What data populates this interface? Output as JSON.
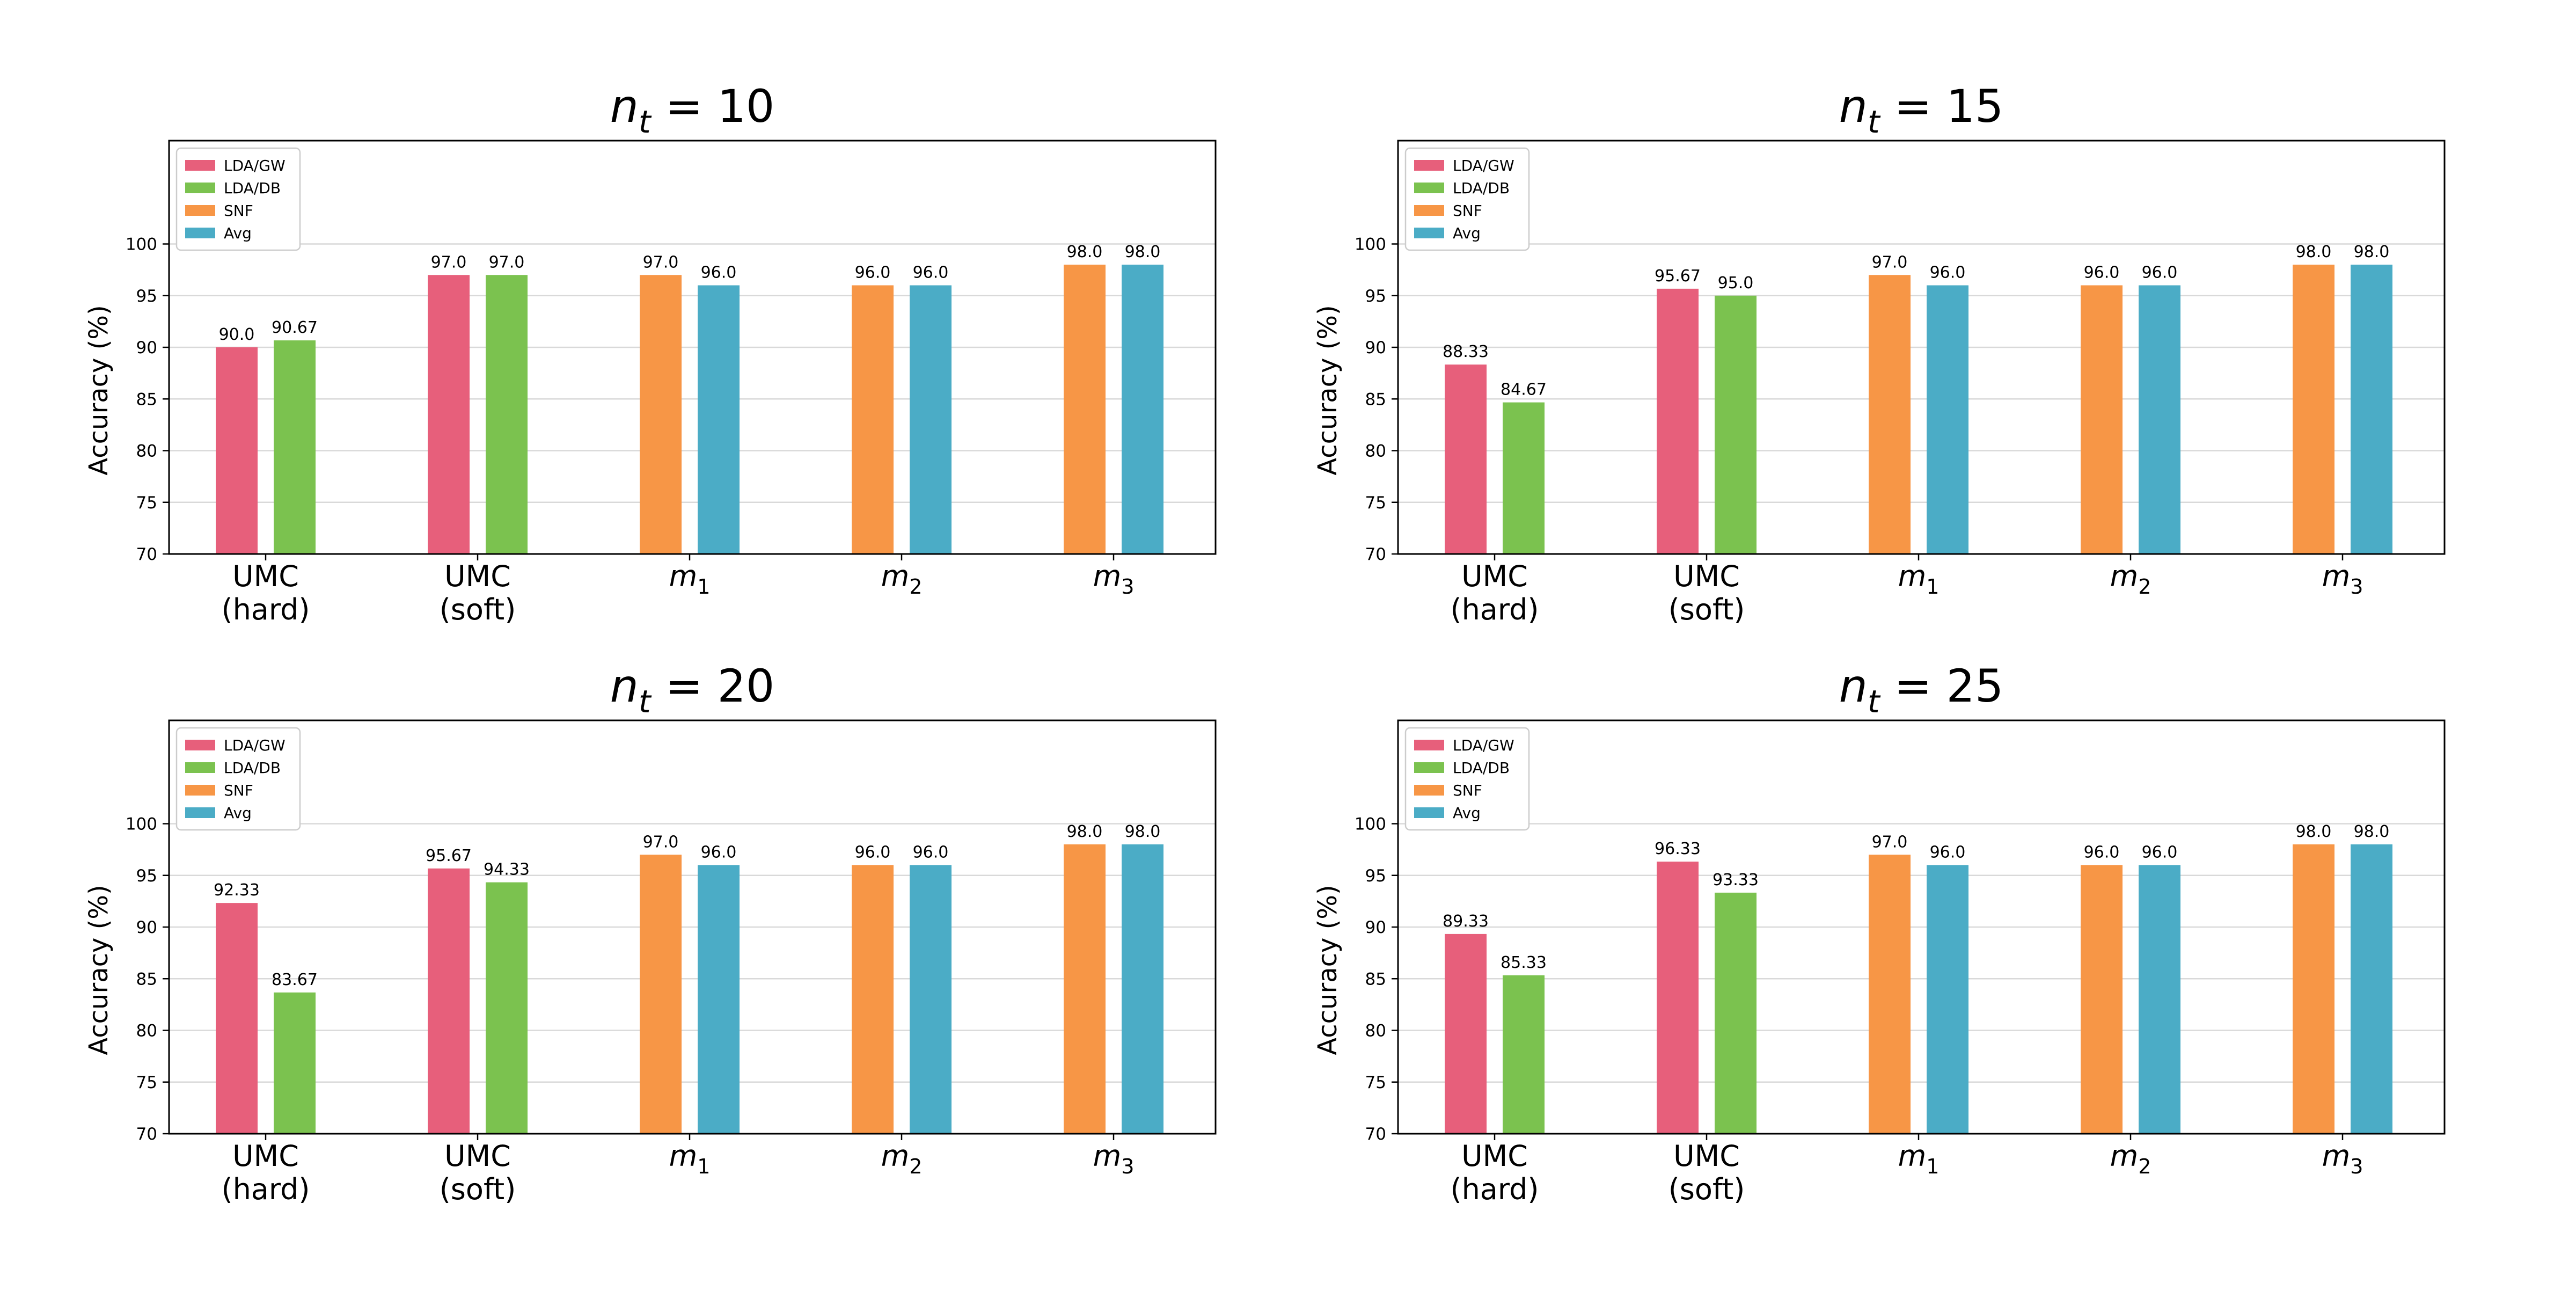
{
  "chart_data": [
    {
      "type": "bar",
      "title_main": "n",
      "title_sub": "t",
      "title_rest": " = 10",
      "ylabel": "Accuracy (%)",
      "ylim": [
        70,
        110
      ],
      "yticks": [
        70,
        75,
        80,
        85,
        90,
        95,
        100
      ],
      "categories": [
        {
          "lines": [
            "UMC",
            "(hard)"
          ]
        },
        {
          "lines": [
            "UMC",
            "(soft)"
          ]
        },
        {
          "math": "m",
          "sub": "1"
        },
        {
          "math": "m",
          "sub": "2"
        },
        {
          "math": "m",
          "sub": "3"
        }
      ],
      "series": [
        {
          "name": "LDA/GW",
          "color": "#e75f7b",
          "values": [
            90.0,
            97.0,
            null,
            null,
            null
          ],
          "labels": [
            "90.0",
            "97.0",
            null,
            null,
            null
          ]
        },
        {
          "name": "LDA/DB",
          "color": "#7bc24f",
          "values": [
            90.67,
            97.0,
            null,
            null,
            null
          ],
          "labels": [
            "90.67",
            "97.0",
            null,
            null,
            null
          ]
        },
        {
          "name": "SNF",
          "color": "#f79646",
          "values": [
            null,
            null,
            97.0,
            96.0,
            98.0
          ],
          "labels": [
            null,
            null,
            "97.0",
            "96.0",
            "98.0"
          ]
        },
        {
          "name": "Avg",
          "color": "#4bacc6",
          "values": [
            null,
            null,
            96.0,
            96.0,
            98.0
          ],
          "labels": [
            null,
            null,
            "96.0",
            "96.0",
            "98.0"
          ]
        }
      ],
      "legend": "top-left",
      "grid": "y"
    },
    {
      "type": "bar",
      "title_main": "n",
      "title_sub": "t",
      "title_rest": " = 15",
      "ylabel": "Accuracy (%)",
      "ylim": [
        70,
        110
      ],
      "yticks": [
        70,
        75,
        80,
        85,
        90,
        95,
        100
      ],
      "categories": [
        {
          "lines": [
            "UMC",
            "(hard)"
          ]
        },
        {
          "lines": [
            "UMC",
            "(soft)"
          ]
        },
        {
          "math": "m",
          "sub": "1"
        },
        {
          "math": "m",
          "sub": "2"
        },
        {
          "math": "m",
          "sub": "3"
        }
      ],
      "series": [
        {
          "name": "LDA/GW",
          "color": "#e75f7b",
          "values": [
            88.33,
            95.67,
            null,
            null,
            null
          ],
          "labels": [
            "88.33",
            "95.67",
            null,
            null,
            null
          ]
        },
        {
          "name": "LDA/DB",
          "color": "#7bc24f",
          "values": [
            84.67,
            95.0,
            null,
            null,
            null
          ],
          "labels": [
            "84.67",
            "95.0",
            null,
            null,
            null
          ]
        },
        {
          "name": "SNF",
          "color": "#f79646",
          "values": [
            null,
            null,
            97.0,
            96.0,
            98.0
          ],
          "labels": [
            null,
            null,
            "97.0",
            "96.0",
            "98.0"
          ]
        },
        {
          "name": "Avg",
          "color": "#4bacc6",
          "values": [
            null,
            null,
            96.0,
            96.0,
            98.0
          ],
          "labels": [
            null,
            null,
            "96.0",
            "96.0",
            "98.0"
          ]
        }
      ],
      "legend": "top-left",
      "grid": "y"
    },
    {
      "type": "bar",
      "title_main": "n",
      "title_sub": "t",
      "title_rest": " = 20",
      "ylabel": "Accuracy (%)",
      "ylim": [
        70,
        110
      ],
      "yticks": [
        70,
        75,
        80,
        85,
        90,
        95,
        100
      ],
      "categories": [
        {
          "lines": [
            "UMC",
            "(hard)"
          ]
        },
        {
          "lines": [
            "UMC",
            "(soft)"
          ]
        },
        {
          "math": "m",
          "sub": "1"
        },
        {
          "math": "m",
          "sub": "2"
        },
        {
          "math": "m",
          "sub": "3"
        }
      ],
      "series": [
        {
          "name": "LDA/GW",
          "color": "#e75f7b",
          "values": [
            92.33,
            95.67,
            null,
            null,
            null
          ],
          "labels": [
            "92.33",
            "95.67",
            null,
            null,
            null
          ]
        },
        {
          "name": "LDA/DB",
          "color": "#7bc24f",
          "values": [
            83.67,
            94.33,
            null,
            null,
            null
          ],
          "labels": [
            "83.67",
            "94.33",
            null,
            null,
            null
          ]
        },
        {
          "name": "SNF",
          "color": "#f79646",
          "values": [
            null,
            null,
            97.0,
            96.0,
            98.0
          ],
          "labels": [
            null,
            null,
            "97.0",
            "96.0",
            "98.0"
          ]
        },
        {
          "name": "Avg",
          "color": "#4bacc6",
          "values": [
            null,
            null,
            96.0,
            96.0,
            98.0
          ],
          "labels": [
            null,
            null,
            "96.0",
            "96.0",
            "98.0"
          ]
        }
      ],
      "legend": "top-left",
      "grid": "y"
    },
    {
      "type": "bar",
      "title_main": "n",
      "title_sub": "t",
      "title_rest": " = 25",
      "ylabel": "Accuracy (%)",
      "ylim": [
        70,
        110
      ],
      "yticks": [
        70,
        75,
        80,
        85,
        90,
        95,
        100
      ],
      "categories": [
        {
          "lines": [
            "UMC",
            "(hard)"
          ]
        },
        {
          "lines": [
            "UMC",
            "(soft)"
          ]
        },
        {
          "math": "m",
          "sub": "1"
        },
        {
          "math": "m",
          "sub": "2"
        },
        {
          "math": "m",
          "sub": "3"
        }
      ],
      "series": [
        {
          "name": "LDA/GW",
          "color": "#e75f7b",
          "values": [
            89.33,
            96.33,
            null,
            null,
            null
          ],
          "labels": [
            "89.33",
            "96.33",
            null,
            null,
            null
          ]
        },
        {
          "name": "LDA/DB",
          "color": "#7bc24f",
          "values": [
            85.33,
            93.33,
            null,
            null,
            null
          ],
          "labels": [
            "85.33",
            "93.33",
            null,
            null,
            null
          ]
        },
        {
          "name": "SNF",
          "color": "#f79646",
          "values": [
            null,
            null,
            97.0,
            96.0,
            98.0
          ],
          "labels": [
            null,
            null,
            "97.0",
            "96.0",
            "98.0"
          ]
        },
        {
          "name": "Avg",
          "color": "#4bacc6",
          "values": [
            null,
            null,
            96.0,
            96.0,
            98.0
          ],
          "labels": [
            null,
            null,
            "96.0",
            "96.0",
            "98.0"
          ]
        }
      ],
      "legend": "top-left",
      "grid": "y"
    }
  ]
}
